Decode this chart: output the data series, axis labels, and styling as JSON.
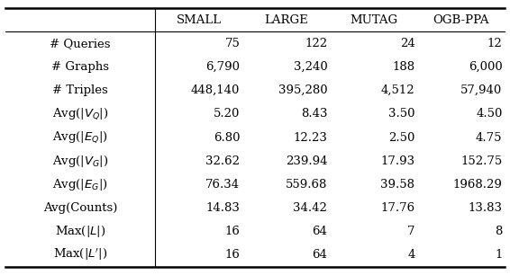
{
  "columns": [
    "",
    "SMALL",
    "LARGE",
    "MUTAG",
    "OGB-PPA"
  ],
  "rows": [
    [
      "# Queries",
      "75",
      "122",
      "24",
      "12"
    ],
    [
      "# Graphs",
      "6,790",
      "3,240",
      "188",
      "6,000"
    ],
    [
      "# Triples",
      "448,140",
      "395,280",
      "4,512",
      "57,940"
    ],
    [
      "Avg(|$V_Q$|)",
      "5.20",
      "8.43",
      "3.50",
      "4.50"
    ],
    [
      "Avg(|$E_Q$|)",
      "6.80",
      "12.23",
      "2.50",
      "4.75"
    ],
    [
      "Avg(|$V_G$|)",
      "32.62",
      "239.94",
      "17.93",
      "152.75"
    ],
    [
      "Avg(|$E_G$|)",
      "76.34",
      "559.68",
      "39.58",
      "1968.29"
    ],
    [
      "Avg(Counts)",
      "14.83",
      "34.42",
      "17.76",
      "13.83"
    ],
    [
      "Max(|$L$|)",
      "16",
      "64",
      "7",
      "8"
    ],
    [
      "Max(|$L'$|)",
      "16",
      "64",
      "4",
      "1"
    ]
  ],
  "figsize": [
    5.66,
    3.06
  ],
  "dpi": 100,
  "font_size": 9.5
}
